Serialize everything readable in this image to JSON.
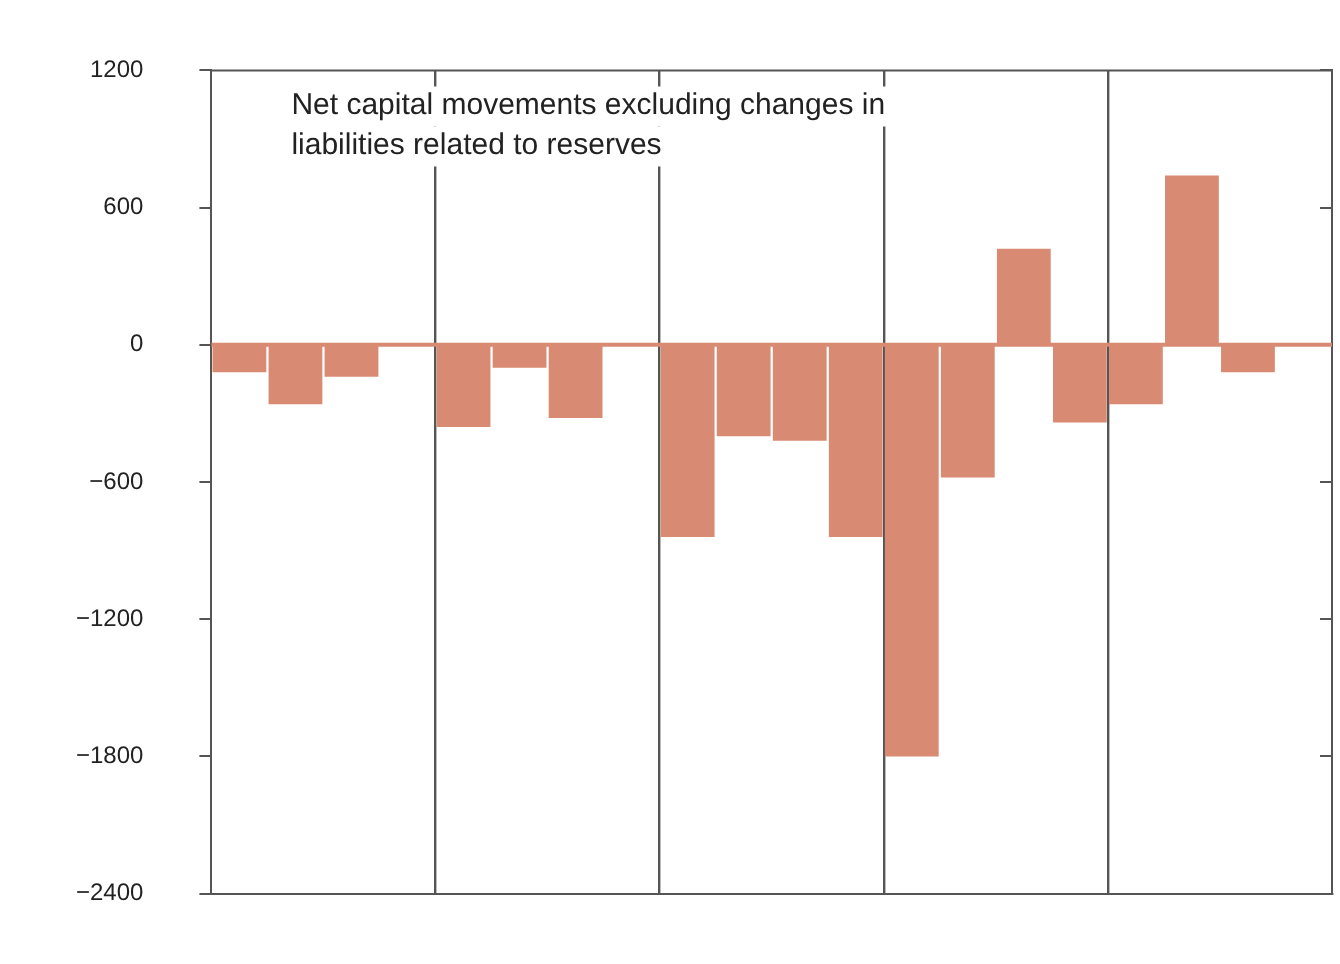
{
  "chart_data": {
    "type": "bar",
    "title": "Net capital movements excluding changes in liabilities related to reserves",
    "categories": [
      null,
      null,
      null,
      null,
      null,
      null,
      null,
      null,
      null,
      null,
      null,
      null,
      null,
      null,
      null,
      null,
      null,
      null,
      null,
      null
    ],
    "values": [
      -120,
      -260,
      -140,
      null,
      -360,
      -100,
      -320,
      null,
      -840,
      -400,
      -420,
      -840,
      -1800,
      -580,
      420,
      -340,
      -260,
      740,
      -120,
      null
    ],
    "ref_lines": [
      {
        "axis": "y",
        "value": 0,
        "color": "#d98a72"
      }
    ],
    "color": "#d98a72",
    "ylim": [
      -2400,
      1200
    ],
    "yticks": [
      1200,
      600,
      0,
      {
        "value": -600,
        "label": "−600"
      },
      {
        "value": -1200,
        "label": "−1200"
      },
      {
        "value": -1800,
        "label": "−1800"
      },
      {
        "value": -2400,
        "label": "−2400"
      }
    ],
    "grid": "x"
  }
}
